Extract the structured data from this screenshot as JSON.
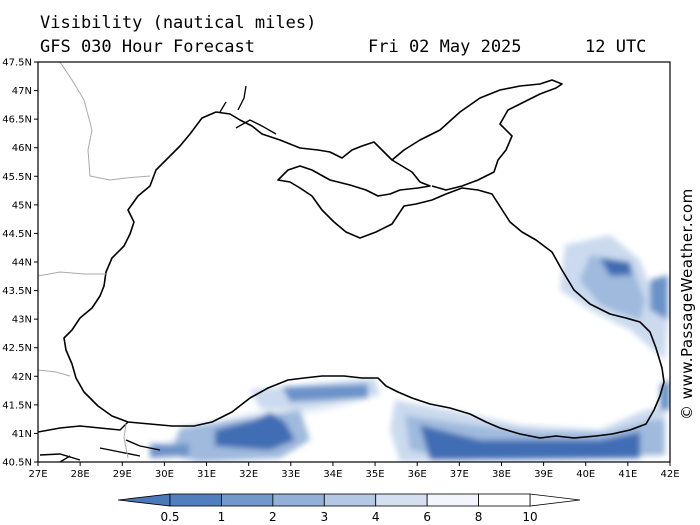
{
  "header": {
    "line1": "Visibility (nautical miles)",
    "model": "GFS 030 Hour Forecast",
    "date": "Fri 02 May 2025",
    "time": "12 UTC"
  },
  "watermark": "© www.PassageWeather.com",
  "map": {
    "lat_labels": [
      "47.5N",
      "47N",
      "46.5N",
      "46N",
      "45.5N",
      "45N",
      "44.5N",
      "44N",
      "43.5N",
      "43N",
      "42.5N",
      "42N",
      "41.5N",
      "41N",
      "40.5N"
    ],
    "lon_labels": [
      "27E",
      "28E",
      "29E",
      "30E",
      "31E",
      "32E",
      "33E",
      "34E",
      "35E",
      "36E",
      "37E",
      "38E",
      "39E",
      "40E",
      "41E",
      "42E"
    ],
    "coast_color": "#000000",
    "border_color": "#aaaaaa"
  },
  "colorbar": {
    "labels": [
      "0.5",
      "1",
      "2",
      "3",
      "4",
      "6",
      "8",
      "10"
    ],
    "colors": [
      "#4a78b8",
      "#4f7fbf",
      "#7399cc",
      "#93b0d8",
      "#b4c8e4",
      "#d4e0f0",
      "#f2f5fb",
      "#ffffff"
    ]
  },
  "palette": {
    "very_low": "#3f6db4",
    "low": "#6c93c9",
    "moderate": "#9fbadd",
    "fair": "#cbdaee",
    "good": "#e8eff8"
  }
}
